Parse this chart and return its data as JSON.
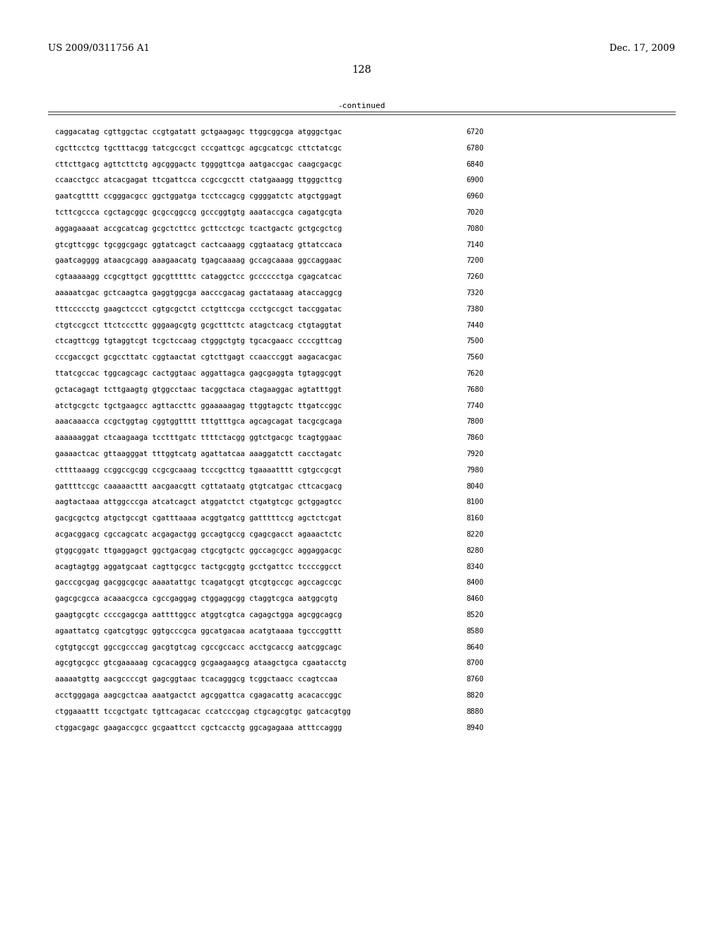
{
  "header_left": "US 2009/0311756 A1",
  "header_right": "Dec. 17, 2009",
  "page_number": "128",
  "continued_label": "-continued",
  "background_color": "#ffffff",
  "text_color": "#000000",
  "font_size": 7.5,
  "header_font_size": 9.5,
  "page_num_font_size": 10.5,
  "sequences": [
    [
      "caggacatag cgttggctac ccgtgatatt gctgaagagc ttggcggcga atgggctgac",
      "6720"
    ],
    [
      "cgcttcctcg tgctttacgg tatcgccgct cccgattcgc agcgcatcgc cttctatcgc",
      "6780"
    ],
    [
      "cttcttgacg agttcttctg agcgggactc tggggttcga aatgaccgac caagcgacgc",
      "6840"
    ],
    [
      "ccaacctgcc atcacgagat ttcgattcca ccgccgcctt ctatgaaagg ttgggcttcg",
      "6900"
    ],
    [
      "gaatcgtttt ccgggacgcc ggctggatga tcctccagcg cggggatctc atgctggagt",
      "6960"
    ],
    [
      "tcttcgccca cgctagcggc gcgccggccg gcccggtgtg aaataccgca cagatgcgta",
      "7020"
    ],
    [
      "aggagaaaat accgcatcag gcgctcttcc gcttcctcgc tcactgactc gctgcgctcg",
      "7080"
    ],
    [
      "gtcgttcggc tgcggcgagc ggtatcagct cactcaaagg cggtaatacg gttatccaca",
      "7140"
    ],
    [
      "gaatcagggg ataacgcagg aaagaacatg tgagcaaaag gccagcaaaa ggccaggaac",
      "7200"
    ],
    [
      "cgtaaaaagg ccgcgttgct ggcgtttttc cataggctcc gcccccctga cgagcatcac",
      "7260"
    ],
    [
      "aaaaatcgac gctcaagtca gaggtggcga aacccgacag gactataaag ataccaggcg",
      "7320"
    ],
    [
      "tttccccctg gaagctccct cgtgcgctct cctgttccga ccctgccgct taccggatac",
      "7380"
    ],
    [
      "ctgtccgcct ttctcccttc gggaagcgtg gcgctttctc atagctcacg ctgtaggtat",
      "7440"
    ],
    [
      "ctcagttcgg tgtaggtcgt tcgctccaag ctgggctgtg tgcacgaacc ccccgttcag",
      "7500"
    ],
    [
      "cccgaccgct gcgccttatc cggtaactat cgtcttgagt ccaacccggt aagacacgac",
      "7560"
    ],
    [
      "ttatcgccac tggcagcagc cactggtaac aggattagca gagcgaggta tgtaggcggt",
      "7620"
    ],
    [
      "gctacagagt tcttgaagtg gtggcctaac tacggctaca ctagaaggac agtatttggt",
      "7680"
    ],
    [
      "atctgcgctc tgctgaagcc agttaccttc ggaaaaagag ttggtagctc ttgatccggc",
      "7740"
    ],
    [
      "aaacaaacca ccgctggtag cggtggtttt tttgtttgca agcagcagat tacgcgcaga",
      "7800"
    ],
    [
      "aaaaaaggat ctcaagaaga tcctttgatc ttttctacgg ggtctgacgc tcagtggaac",
      "7860"
    ],
    [
      "gaaaactcac gttaagggat tttggtcatg agattatcaa aaaggatctt cacctagatc",
      "7920"
    ],
    [
      "cttttaaagg ccggccgcgg ccgcgcaaag tcccgcttcg tgaaaatttt cgtgccgcgt",
      "7980"
    ],
    [
      "gattttccgc caaaaacttt aacgaacgtt cgttataatg gtgtcatgac cttcacgacg",
      "8040"
    ],
    [
      "aagtactaaa attggcccga atcatcagct atggatctct ctgatgtcgc gctggagtcc",
      "8100"
    ],
    [
      "gacgcgctcg atgctgccgt cgatttaaaa acggtgatcg gatttttccg agctctcgat",
      "8160"
    ],
    [
      "acgacggacg cgccagcatc acgagactgg gccagtgccg cgagcgacct agaaactctc",
      "8220"
    ],
    [
      "gtggcggatc ttgaggagct ggctgacgag ctgcgtgctc ggccagcgcc aggaggacgc",
      "8280"
    ],
    [
      "acagtagtgg aggatgcaat cagttgcgcc tactgcggtg gcctgattcc tccccggcct",
      "8340"
    ],
    [
      "gacccgcgag gacggcgcgc aaaatattgc tcagatgcgt gtcgtgccgc agccagccgc",
      "8400"
    ],
    [
      "gagcgcgcca acaaacgcca cgccgaggag ctggaggcgg ctaggtcgca aatggcgtg",
      "8460"
    ],
    [
      "gaagtgcgtc ccccgagcga aattttggcc atggtcgtca cagagctgga agcggcagcg",
      "8520"
    ],
    [
      "agaattatcg cgatcgtggc ggtgcccgca ggcatgacaa acatgtaaaa tgcccggttt",
      "8580"
    ],
    [
      "cgtgtgccgt ggccgcccag gacgtgtcag cgccgccacc acctgcaccg aatcggcagc",
      "8640"
    ],
    [
      "agcgtgcgcc gtcgaaaaag cgcacaggcg gcgaagaagcg ataagctgca cgaatacctg",
      "8700"
    ],
    [
      "aaaaatgttg aacgccccgt gagcggtaac tcacagggcg tcggctaacc ccagtccaa",
      "8760"
    ],
    [
      "acctgggaga aagcgctcaa aaatgactct agcggattca cgagacattg acacaccggc",
      "8820"
    ],
    [
      "ctggaaattt tccgctgatc tgttcagacac ccatcccgag ctgcagcgtgc gatcacgtgg",
      "8880"
    ],
    [
      "ctggacgagc gaagaccgcc gcgaattcct cgctcacctg ggcagagaaa atttccaggg",
      "8940"
    ]
  ]
}
